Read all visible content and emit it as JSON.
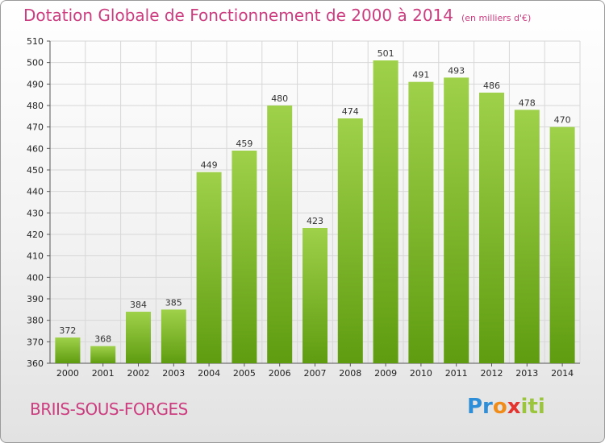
{
  "title": {
    "main": "Dotation Globale de Fonctionnement de 2000 à 2014",
    "unit": "(en milliers d'€)"
  },
  "commune": "BRIIS-SOUS-FORGES",
  "logo": {
    "text": "Proxiti",
    "parts": [
      "Pr",
      "o",
      "x",
      "iti"
    ]
  },
  "colors": {
    "accent": "#cc3d7f",
    "bar_top": "#9fd14a",
    "bar_bottom": "#5f9c10",
    "grid": "#d7d7d7"
  },
  "chart_data": {
    "type": "bar",
    "categories": [
      "2000",
      "2001",
      "2002",
      "2003",
      "2004",
      "2005",
      "2006",
      "2007",
      "2008",
      "2009",
      "2010",
      "2011",
      "2012",
      "2013",
      "2014"
    ],
    "values": [
      372,
      368,
      384,
      385,
      449,
      459,
      480,
      423,
      474,
      501,
      491,
      493,
      486,
      478,
      470
    ],
    "ylim": [
      360,
      510
    ],
    "yticks": [
      360,
      370,
      380,
      390,
      400,
      410,
      420,
      430,
      440,
      450,
      460,
      470,
      480,
      490,
      500,
      510
    ],
    "grid": true
  }
}
